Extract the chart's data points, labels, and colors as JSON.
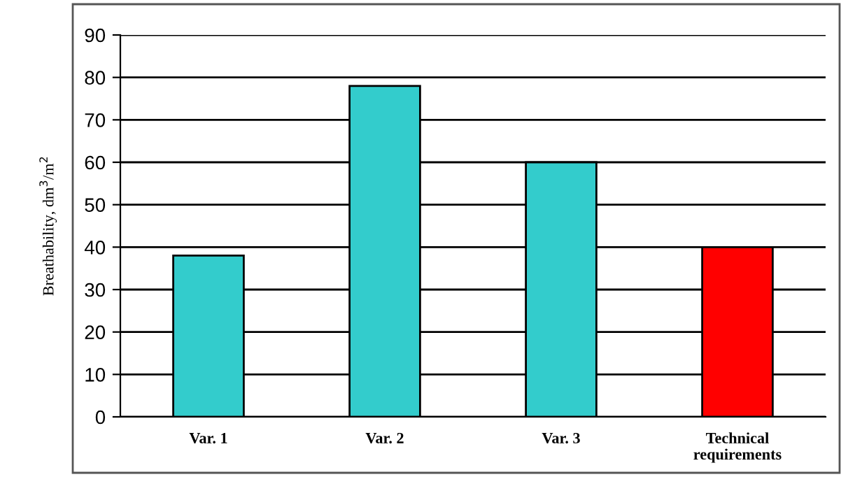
{
  "chart_data": {
    "type": "bar",
    "ylabel": "Breathability, dm$^{3}$/m$^{2}$",
    "categories": [
      "Var. 1",
      "Var. 2",
      "Var. 3",
      "Technical\nrequirements"
    ],
    "values": [
      38,
      78,
      60,
      40
    ],
    "colors": [
      "#33cccc",
      "#33cccc",
      "#33cccc",
      "#ff0000"
    ],
    "ylim": [
      0,
      90
    ],
    "yticks": [
      0,
      10,
      20,
      30,
      40,
      50,
      60,
      70,
      80,
      90
    ],
    "grid": "y",
    "legend": false
  }
}
